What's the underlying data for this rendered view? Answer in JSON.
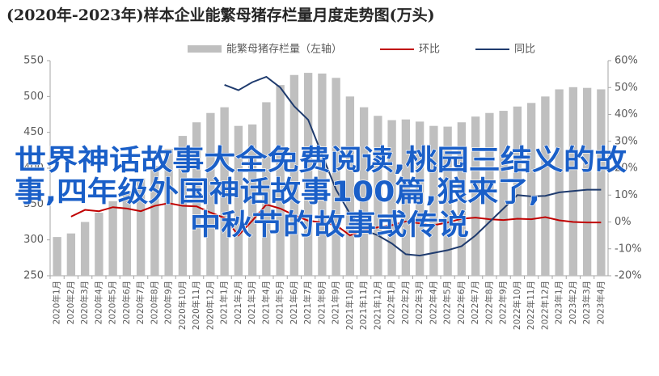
{
  "chart_data": {
    "type": "bar_line",
    "title": "(2020年-2023年)样本企业能繁母猪存栏量月度走势图(万头)",
    "categories": [
      "2020年1月",
      "2020年2月",
      "2020年3月",
      "2020年4月",
      "2020年5月",
      "2020年6月",
      "2020年7月",
      "2020年8月",
      "2020年9月",
      "2020年10月",
      "2020年11月",
      "2020年12月",
      "2021年1月",
      "2021年2月",
      "2021年3月",
      "2021年4月",
      "2021年5月",
      "2021年6月",
      "2021年7月",
      "2021年8月",
      "2021年9月",
      "2021年10月",
      "2021年11月",
      "2021年12月",
      "2022年1月",
      "2022年2月",
      "2022年3月",
      "2022年4月",
      "2022年5月",
      "2022年6月",
      "2022年7月",
      "2022年8月",
      "2022年9月",
      "2022年10月",
      "2022年11月",
      "2022年12月",
      "2023年1月",
      "2023年2月",
      "2023年3月",
      "2023年4月"
    ],
    "series": [
      {
        "name": "能繁母猪存栏量（左轴）",
        "kind": "bar",
        "color": "#bfbfbf",
        "values": [
          304,
          309,
          325,
          338,
          354,
          368,
          386,
          403,
          427,
          445,
          464,
          477,
          485,
          459,
          461,
          492,
          516,
          530,
          533,
          532,
          526,
          500,
          485,
          473,
          467,
          468,
          465,
          459,
          458,
          464,
          472,
          477,
          480,
          486,
          491,
          500,
          510,
          513,
          512,
          510
        ]
      },
      {
        "name": "环比",
        "kind": "line",
        "axis": "y2",
        "color": "#c00000",
        "values": [
          null,
          2,
          4.5,
          4,
          5.5,
          5,
          4,
          6,
          7,
          6,
          5.8,
          3.5,
          1.5,
          -5,
          0.5,
          6.5,
          5,
          2.5,
          0.5,
          -0.2,
          -1.2,
          -5,
          -3,
          -2,
          -1.2,
          0.2,
          -0.5,
          -1.2,
          -0.2,
          1.2,
          1.6,
          1,
          0.7,
          1.2,
          1,
          1.8,
          0.6,
          0,
          -0.2,
          -0.2
        ]
      },
      {
        "name": "同比",
        "kind": "line",
        "axis": "y2",
        "color": "#1f3b6e",
        "values": [
          null,
          null,
          null,
          null,
          null,
          null,
          null,
          null,
          null,
          null,
          null,
          null,
          51,
          49,
          52,
          54,
          50,
          43,
          38,
          25,
          12,
          3,
          -3,
          -5,
          -8,
          -12,
          -12.5,
          -11.5,
          -10.5,
          -9,
          -5,
          0,
          5,
          10,
          9.5,
          9.7,
          11,
          11.5,
          12,
          12
        ]
      }
    ],
    "ylim": [
      250,
      550
    ],
    "yticks": [
      250,
      300,
      350,
      400,
      450,
      500,
      550
    ],
    "y2lim": [
      -20,
      60
    ],
    "y2ticks": [
      {
        "value": -20,
        "label": "-20%"
      },
      {
        "value": -10,
        "label": "-10%"
      },
      {
        "value": 0,
        "label": "0%"
      },
      {
        "value": 10,
        "label": "10%"
      },
      {
        "value": 20,
        "label": "20%"
      },
      {
        "value": 30,
        "label": "30%"
      },
      {
        "value": 40,
        "label": "40%"
      },
      {
        "value": 50,
        "label": "50%"
      },
      {
        "value": 60,
        "label": "60%"
      }
    ],
    "legend": "top",
    "overlay": [
      "世界神话故事大全免费阅读,桃园三结义的故",
      "事,四年级外国神话故事100篇,狼来了,",
      "中秋节的故事或传说"
    ]
  }
}
